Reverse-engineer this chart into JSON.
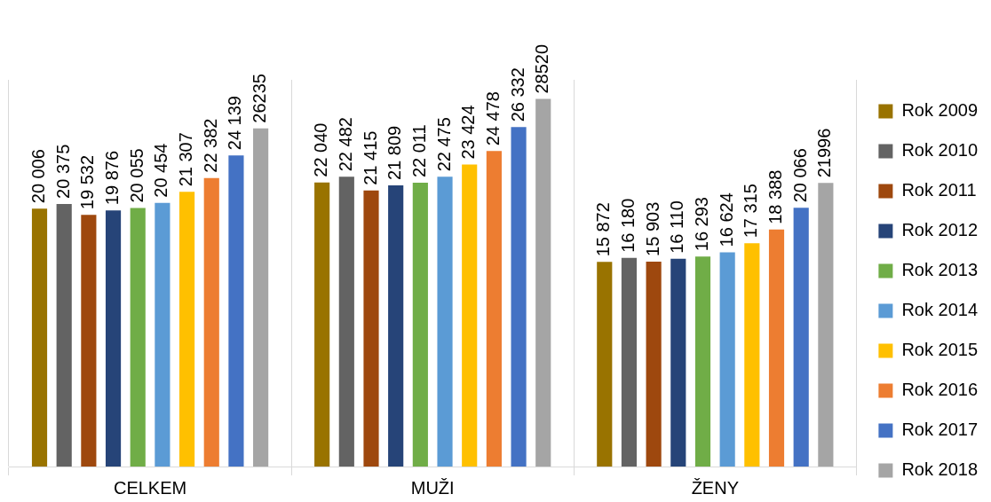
{
  "chart_data": {
    "type": "bar",
    "categories": [
      "CELKEM",
      "MUŽI",
      "ŽENY"
    ],
    "legend": "right",
    "grid": "x",
    "tick_labels": "x",
    "series": [
      {
        "name": "Rok 2009",
        "color": "#997300",
        "values": [
          20006,
          22040,
          15872
        ],
        "value_labels": [
          "20 006",
          "22 040",
          "15 872"
        ]
      },
      {
        "name": "Rok 2010",
        "color": "#636363",
        "values": [
          20375,
          22482,
          16180
        ],
        "value_labels": [
          "20 375",
          "22 482",
          "16 180"
        ]
      },
      {
        "name": "Rok 2011",
        "color": "#9e480e",
        "values": [
          19532,
          21415,
          15903
        ],
        "value_labels": [
          "19 532",
          "21 415",
          "15 903"
        ]
      },
      {
        "name": "Rok 2012",
        "color": "#264478",
        "values": [
          19876,
          21809,
          16110
        ],
        "value_labels": [
          "19 876",
          "21 809",
          "16 110"
        ]
      },
      {
        "name": "Rok 2013",
        "color": "#70ad47",
        "values": [
          20055,
          22011,
          16293
        ],
        "value_labels": [
          "20 055",
          "22 011",
          "16 293"
        ]
      },
      {
        "name": "Rok 2014",
        "color": "#5b9bd5",
        "values": [
          20454,
          22475,
          16624
        ],
        "value_labels": [
          "20 454",
          "22 475",
          "16 624"
        ]
      },
      {
        "name": "Rok 2015",
        "color": "#ffc000",
        "values": [
          21307,
          23424,
          17315
        ],
        "value_labels": [
          "21 307",
          "23 424",
          "17 315"
        ]
      },
      {
        "name": "Rok 2016",
        "color": "#ed7d31",
        "values": [
          22382,
          24478,
          18388
        ],
        "value_labels": [
          "22 382",
          "24 478",
          "18 388"
        ]
      },
      {
        "name": "Rok 2017",
        "color": "#4472c4",
        "values": [
          24139,
          26332,
          20066
        ],
        "value_labels": [
          "24 139",
          "26 332",
          "20 066"
        ]
      },
      {
        "name": "Rok 2018",
        "color": "#a5a5a5",
        "values": [
          26235,
          28520,
          21996
        ],
        "value_labels": [
          "26235",
          "28520",
          "21996"
        ]
      }
    ]
  }
}
